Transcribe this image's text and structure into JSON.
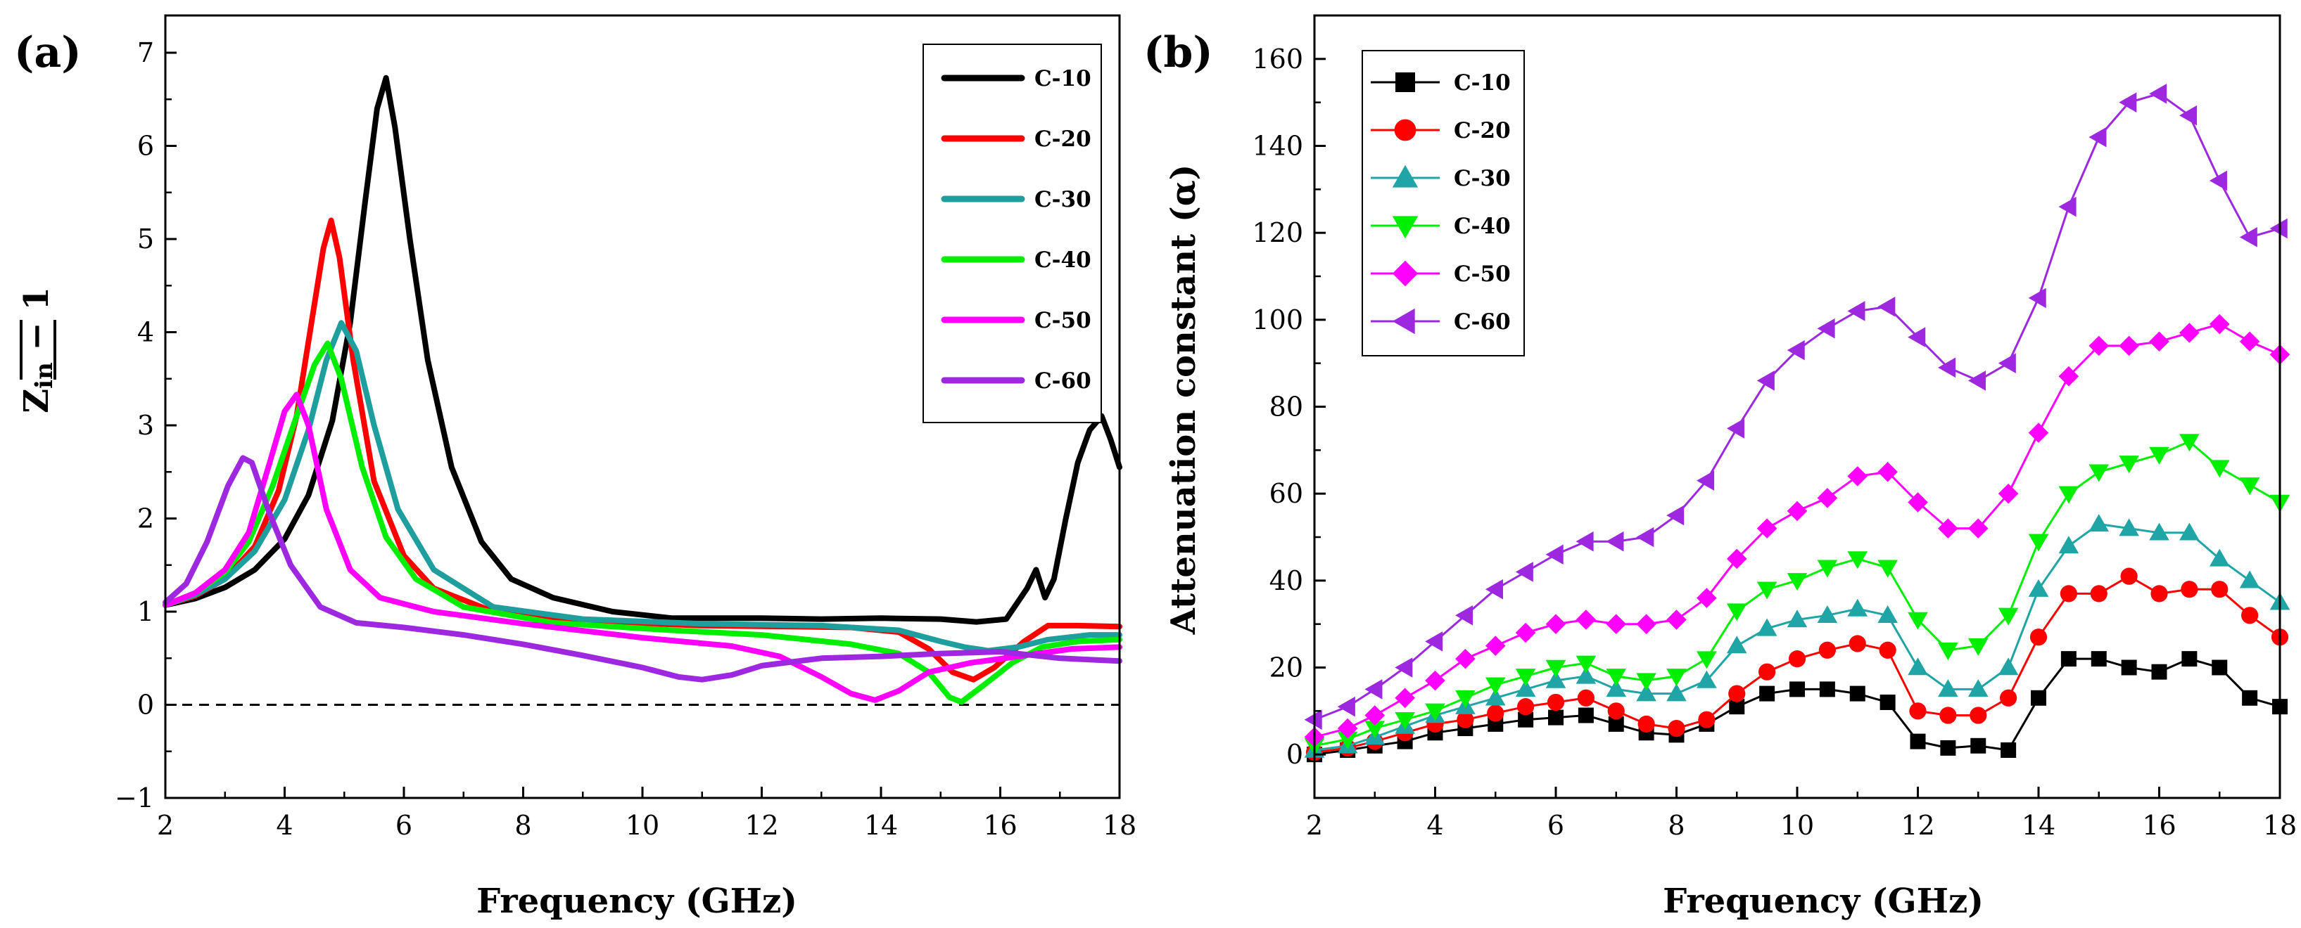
{
  "chart_data": [
    {
      "panel_label": "(a)",
      "type": "line",
      "xlabel": "Frequency (GHz)",
      "ylabel": "|Zin − 1|",
      "ylabel_parts": {
        "main": "Z",
        "subscript": "in",
        "suffix": " − 1"
      },
      "xlim": [
        2,
        18
      ],
      "ylim": [
        -1,
        7.4
      ],
      "x_ticks": [
        "2",
        "4",
        "6",
        "8",
        "10",
        "12",
        "14",
        "16",
        "18"
      ],
      "y_ticks": [
        "−1",
        "0",
        "1",
        "2",
        "3",
        "4",
        "5",
        "6",
        "7"
      ],
      "reference_line": {
        "y": 0,
        "style": "dashed"
      },
      "legend_position": "top-right",
      "series": [
        {
          "name": "C-10",
          "color": "#000000",
          "points": [
            [
              2,
              1.07
            ],
            [
              2.5,
              1.14
            ],
            [
              3,
              1.26
            ],
            [
              3.5,
              1.45
            ],
            [
              4,
              1.78
            ],
            [
              4.4,
              2.25
            ],
            [
              4.8,
              3.05
            ],
            [
              5.1,
              4.1
            ],
            [
              5.35,
              5.4
            ],
            [
              5.55,
              6.4
            ],
            [
              5.7,
              6.73
            ],
            [
              5.85,
              6.2
            ],
            [
              6.1,
              5.0
            ],
            [
              6.4,
              3.7
            ],
            [
              6.8,
              2.55
            ],
            [
              7.3,
              1.75
            ],
            [
              7.8,
              1.35
            ],
            [
              8.5,
              1.15
            ],
            [
              9.5,
              1.0
            ],
            [
              10.5,
              0.93
            ],
            [
              12,
              0.93
            ],
            [
              13,
              0.92
            ],
            [
              14,
              0.93
            ],
            [
              15,
              0.92
            ],
            [
              15.6,
              0.89
            ],
            [
              16.1,
              0.92
            ],
            [
              16.45,
              1.25
            ],
            [
              16.6,
              1.45
            ],
            [
              16.75,
              1.15
            ],
            [
              16.9,
              1.35
            ],
            [
              17.1,
              2.0
            ],
            [
              17.3,
              2.6
            ],
            [
              17.5,
              2.95
            ],
            [
              17.7,
              3.1
            ],
            [
              17.85,
              2.85
            ],
            [
              18,
              2.55
            ]
          ]
        },
        {
          "name": "C-20",
          "color": "#ff0000",
          "points": [
            [
              2,
              1.07
            ],
            [
              2.5,
              1.17
            ],
            [
              3,
              1.35
            ],
            [
              3.5,
              1.7
            ],
            [
              3.9,
              2.3
            ],
            [
              4.2,
              3.1
            ],
            [
              4.45,
              4.1
            ],
            [
              4.65,
              4.9
            ],
            [
              4.78,
              5.2
            ],
            [
              4.92,
              4.8
            ],
            [
              5.15,
              3.7
            ],
            [
              5.5,
              2.4
            ],
            [
              6,
              1.6
            ],
            [
              6.5,
              1.25
            ],
            [
              7.5,
              1.0
            ],
            [
              9,
              0.9
            ],
            [
              11,
              0.85
            ],
            [
              12.5,
              0.84
            ],
            [
              13.5,
              0.83
            ],
            [
              14.3,
              0.78
            ],
            [
              14.8,
              0.6
            ],
            [
              15.2,
              0.35
            ],
            [
              15.55,
              0.27
            ],
            [
              15.9,
              0.4
            ],
            [
              16.4,
              0.68
            ],
            [
              16.8,
              0.85
            ],
            [
              17.3,
              0.85
            ],
            [
              18,
              0.84
            ]
          ]
        },
        {
          "name": "C-30",
          "color": "#1f9e9e",
          "points": [
            [
              2,
              1.07
            ],
            [
              2.5,
              1.18
            ],
            [
              3,
              1.35
            ],
            [
              3.5,
              1.65
            ],
            [
              4,
              2.2
            ],
            [
              4.4,
              2.95
            ],
            [
              4.7,
              3.7
            ],
            [
              4.95,
              4.1
            ],
            [
              5.2,
              3.8
            ],
            [
              5.5,
              3.0
            ],
            [
              5.9,
              2.1
            ],
            [
              6.5,
              1.45
            ],
            [
              7.5,
              1.05
            ],
            [
              9,
              0.92
            ],
            [
              11,
              0.87
            ],
            [
              13,
              0.85
            ],
            [
              14.3,
              0.8
            ],
            [
              15,
              0.68
            ],
            [
              15.4,
              0.62
            ],
            [
              15.8,
              0.58
            ],
            [
              16.3,
              0.62
            ],
            [
              16.8,
              0.7
            ],
            [
              17.5,
              0.75
            ],
            [
              18,
              0.75
            ]
          ]
        },
        {
          "name": "C-40",
          "color": "#00ee00",
          "points": [
            [
              2,
              1.07
            ],
            [
              2.5,
              1.2
            ],
            [
              3,
              1.42
            ],
            [
              3.4,
              1.75
            ],
            [
              3.8,
              2.35
            ],
            [
              4.2,
              3.1
            ],
            [
              4.5,
              3.65
            ],
            [
              4.72,
              3.88
            ],
            [
              4.95,
              3.5
            ],
            [
              5.3,
              2.55
            ],
            [
              5.7,
              1.8
            ],
            [
              6.2,
              1.35
            ],
            [
              7,
              1.05
            ],
            [
              8.5,
              0.88
            ],
            [
              10.5,
              0.8
            ],
            [
              12,
              0.75
            ],
            [
              13.5,
              0.65
            ],
            [
              14.3,
              0.55
            ],
            [
              14.8,
              0.35
            ],
            [
              15.15,
              0.08
            ],
            [
              15.35,
              0.03
            ],
            [
              15.7,
              0.2
            ],
            [
              16.2,
              0.45
            ],
            [
              16.7,
              0.62
            ],
            [
              17.3,
              0.68
            ],
            [
              18,
              0.7
            ]
          ]
        },
        {
          "name": "C-50",
          "color": "#ff00ff",
          "points": [
            [
              2,
              1.07
            ],
            [
              2.5,
              1.2
            ],
            [
              3,
              1.45
            ],
            [
              3.4,
              1.85
            ],
            [
              3.75,
              2.6
            ],
            [
              4,
              3.15
            ],
            [
              4.2,
              3.33
            ],
            [
              4.4,
              3.0
            ],
            [
              4.7,
              2.1
            ],
            [
              5.1,
              1.45
            ],
            [
              5.6,
              1.15
            ],
            [
              6.5,
              1.0
            ],
            [
              8,
              0.87
            ],
            [
              10,
              0.72
            ],
            [
              11.5,
              0.63
            ],
            [
              12.3,
              0.52
            ],
            [
              13,
              0.3
            ],
            [
              13.5,
              0.12
            ],
            [
              13.9,
              0.05
            ],
            [
              14.3,
              0.15
            ],
            [
              14.8,
              0.35
            ],
            [
              15.5,
              0.45
            ],
            [
              16.3,
              0.52
            ],
            [
              17.2,
              0.6
            ],
            [
              18,
              0.62
            ]
          ]
        },
        {
          "name": "C-60",
          "color": "#9d28e0",
          "points": [
            [
              2,
              1.1
            ],
            [
              2.35,
              1.3
            ],
            [
              2.7,
              1.75
            ],
            [
              3.05,
              2.35
            ],
            [
              3.3,
              2.65
            ],
            [
              3.45,
              2.6
            ],
            [
              3.75,
              2.05
            ],
            [
              4.1,
              1.5
            ],
            [
              4.6,
              1.05
            ],
            [
              5.2,
              0.88
            ],
            [
              6,
              0.83
            ],
            [
              7,
              0.75
            ],
            [
              8,
              0.65
            ],
            [
              9,
              0.53
            ],
            [
              10,
              0.4
            ],
            [
              10.6,
              0.3
            ],
            [
              11,
              0.27
            ],
            [
              11.5,
              0.32
            ],
            [
              12,
              0.42
            ],
            [
              13,
              0.5
            ],
            [
              14,
              0.52
            ],
            [
              15,
              0.55
            ],
            [
              16,
              0.57
            ],
            [
              17,
              0.5
            ],
            [
              18,
              0.47
            ]
          ]
        }
      ]
    },
    {
      "panel_label": "(b)",
      "type": "line",
      "xlabel": "Frequency (GHz)",
      "ylabel": "Attenuation constant (α)",
      "xlim": [
        2,
        18
      ],
      "ylim": [
        -10,
        170
      ],
      "x_ticks": [
        "2",
        "4",
        "6",
        "8",
        "10",
        "12",
        "14",
        "16",
        "18"
      ],
      "y_ticks": [
        "0",
        "20",
        "40",
        "60",
        "80",
        "100",
        "120",
        "140",
        "160"
      ],
      "legend_position": "top-left",
      "x": [
        2,
        2.55,
        3,
        3.5,
        4,
        4.5,
        5,
        5.5,
        6,
        6.5,
        7,
        7.5,
        8,
        8.5,
        9,
        9.5,
        10,
        10.5,
        11,
        11.5,
        12,
        12.5,
        13,
        13.5,
        14,
        14.5,
        15,
        15.5,
        16,
        16.5,
        17,
        17.5,
        18
      ],
      "series": [
        {
          "name": "C-10",
          "color": "#000000",
          "marker": "square",
          "values": [
            0,
            1,
            2,
            3,
            5,
            6,
            7,
            8,
            8.5,
            9,
            7,
            5,
            4.5,
            7,
            11,
            14,
            15,
            15,
            14,
            12,
            3,
            1.5,
            2,
            1,
            13,
            22,
            22,
            20,
            19,
            22,
            20,
            13,
            11
          ]
        },
        {
          "name": "C-20",
          "color": "#ff0000",
          "marker": "circle",
          "values": [
            0.5,
            1.5,
            3,
            5,
            7,
            8,
            9.5,
            11,
            12,
            13,
            10,
            7,
            6,
            8,
            14,
            19,
            22,
            24,
            25.5,
            24,
            10,
            9,
            9,
            13,
            27,
            37,
            37,
            41,
            37,
            38,
            38,
            32,
            27
          ]
        },
        {
          "name": "C-30",
          "color": "#1fa5a5",
          "marker": "triangle-up",
          "values": [
            1,
            2,
            4,
            6.5,
            9,
            11,
            13,
            15,
            17,
            18,
            15,
            14,
            14,
            17,
            25,
            29,
            31,
            32,
            33.5,
            32,
            20,
            15,
            15,
            20,
            38,
            48,
            53,
            52,
            51,
            51,
            45,
            40,
            35
          ]
        },
        {
          "name": "C-40",
          "color": "#00ee00",
          "marker": "triangle-down",
          "values": [
            2,
            3.5,
            6,
            8,
            10,
            13,
            16,
            18,
            20,
            21,
            18,
            17,
            18,
            22,
            33,
            38,
            40,
            43,
            45,
            43,
            31,
            24,
            25,
            32,
            49,
            60,
            65,
            67,
            69,
            72,
            66,
            62,
            58
          ]
        },
        {
          "name": "C-50",
          "color": "#ff00ff",
          "marker": "diamond",
          "values": [
            4,
            6,
            9,
            13,
            17,
            22,
            25,
            28,
            30,
            31,
            30,
            30,
            31,
            36,
            45,
            52,
            56,
            59,
            64,
            65,
            58,
            52,
            52,
            60,
            74,
            87,
            94,
            94,
            95,
            97,
            99,
            95,
            92
          ]
        },
        {
          "name": "C-60",
          "color": "#9d28e0",
          "marker": "triangle-left",
          "values": [
            8,
            11,
            15,
            20,
            26,
            32,
            38,
            42,
            46,
            49,
            49,
            50,
            55,
            63,
            75,
            86,
            93,
            98,
            102,
            103,
            96,
            89,
            86,
            90,
            105,
            126,
            142,
            150,
            152,
            147,
            132,
            119,
            121
          ]
        }
      ]
    }
  ]
}
